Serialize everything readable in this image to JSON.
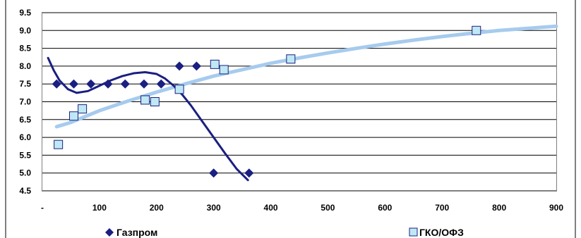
{
  "chart_data": {
    "type": "scatter",
    "title": "",
    "xlabel": "",
    "ylabel": "",
    "xlim": [
      0,
      900
    ],
    "ylim": [
      4.5,
      9.5
    ],
    "x_ticks": [
      {
        "value": 0,
        "label": "-"
      },
      {
        "value": 100,
        "label": "100"
      },
      {
        "value": 200,
        "label": "200"
      },
      {
        "value": 300,
        "label": "300"
      },
      {
        "value": 400,
        "label": "400"
      },
      {
        "value": 500,
        "label": "500"
      },
      {
        "value": 600,
        "label": "600"
      },
      {
        "value": 700,
        "label": "700"
      },
      {
        "value": 800,
        "label": "800"
      },
      {
        "value": 900,
        "label": "900"
      }
    ],
    "y_ticks": [
      {
        "value": 4.5,
        "label": "4.5"
      },
      {
        "value": 5.0,
        "label": "5.0"
      },
      {
        "value": 5.5,
        "label": "5.5"
      },
      {
        "value": 6.0,
        "label": "6.0"
      },
      {
        "value": 6.5,
        "label": "6.5"
      },
      {
        "value": 7.0,
        "label": "7.0"
      },
      {
        "value": 7.5,
        "label": "7.5"
      },
      {
        "value": 8.0,
        "label": "8.0"
      },
      {
        "value": 8.5,
        "label": "8.5"
      },
      {
        "value": 9.0,
        "label": "9.0"
      },
      {
        "value": 9.5,
        "label": "9.5"
      }
    ],
    "grid": "horizontal",
    "legend_position": "bottom",
    "series": [
      {
        "name": "Газпром",
        "marker": "diamond",
        "color": "#1a1f80",
        "points": [
          {
            "x": 25,
            "y": 7.5
          },
          {
            "x": 55,
            "y": 7.5
          },
          {
            "x": 85,
            "y": 7.5
          },
          {
            "x": 115,
            "y": 7.5
          },
          {
            "x": 145,
            "y": 7.5
          },
          {
            "x": 178,
            "y": 7.5
          },
          {
            "x": 208,
            "y": 7.5
          },
          {
            "x": 240,
            "y": 8.0
          },
          {
            "x": 270,
            "y": 8.0
          },
          {
            "x": 300,
            "y": 5.0
          },
          {
            "x": 362,
            "y": 5.0
          }
        ],
        "trend": [
          {
            "x": 10,
            "y": 8.23
          },
          {
            "x": 20,
            "y": 7.88
          },
          {
            "x": 30,
            "y": 7.6
          },
          {
            "x": 45,
            "y": 7.35
          },
          {
            "x": 60,
            "y": 7.25
          },
          {
            "x": 80,
            "y": 7.3
          },
          {
            "x": 100,
            "y": 7.45
          },
          {
            "x": 120,
            "y": 7.6
          },
          {
            "x": 140,
            "y": 7.72
          },
          {
            "x": 160,
            "y": 7.8
          },
          {
            "x": 180,
            "y": 7.83
          },
          {
            "x": 200,
            "y": 7.78
          },
          {
            "x": 215,
            "y": 7.65
          },
          {
            "x": 230,
            "y": 7.45
          },
          {
            "x": 245,
            "y": 7.2
          },
          {
            "x": 260,
            "y": 6.9
          },
          {
            "x": 280,
            "y": 6.45
          },
          {
            "x": 300,
            "y": 6.0
          },
          {
            "x": 320,
            "y": 5.55
          },
          {
            "x": 340,
            "y": 5.12
          },
          {
            "x": 360,
            "y": 4.8
          }
        ]
      },
      {
        "name": "ГКО/ОФЗ",
        "marker": "square",
        "color": "#bfe8f4",
        "points": [
          {
            "x": 28,
            "y": 5.8
          },
          {
            "x": 55,
            "y": 6.6
          },
          {
            "x": 70,
            "y": 6.8
          },
          {
            "x": 180,
            "y": 7.05
          },
          {
            "x": 197,
            "y": 7.0
          },
          {
            "x": 240,
            "y": 7.35
          },
          {
            "x": 302,
            "y": 8.05
          },
          {
            "x": 318,
            "y": 7.9
          },
          {
            "x": 435,
            "y": 8.2
          },
          {
            "x": 760,
            "y": 9.0
          }
        ],
        "trend": [
          {
            "x": 25,
            "y": 6.3
          },
          {
            "x": 50,
            "y": 6.42
          },
          {
            "x": 100,
            "y": 6.75
          },
          {
            "x": 150,
            "y": 7.02
          },
          {
            "x": 200,
            "y": 7.27
          },
          {
            "x": 250,
            "y": 7.5
          },
          {
            "x": 300,
            "y": 7.72
          },
          {
            "x": 350,
            "y": 7.9
          },
          {
            "x": 400,
            "y": 8.08
          },
          {
            "x": 450,
            "y": 8.23
          },
          {
            "x": 500,
            "y": 8.37
          },
          {
            "x": 550,
            "y": 8.5
          },
          {
            "x": 600,
            "y": 8.62
          },
          {
            "x": 650,
            "y": 8.73
          },
          {
            "x": 700,
            "y": 8.83
          },
          {
            "x": 750,
            "y": 8.92
          },
          {
            "x": 800,
            "y": 9.0
          },
          {
            "x": 850,
            "y": 9.06
          },
          {
            "x": 900,
            "y": 9.12
          }
        ]
      }
    ]
  }
}
